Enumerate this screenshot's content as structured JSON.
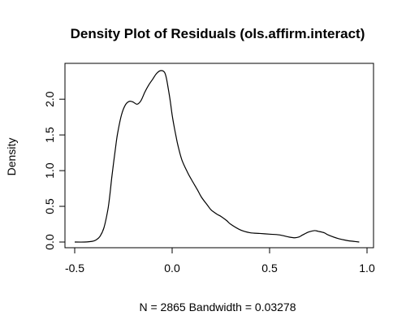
{
  "chart_data": {
    "type": "line",
    "title": "Density Plot of Residuals (ols.affirm.interact)",
    "xlabel": "N = 2865   Bandwidth = 0.03278",
    "ylabel": "Density",
    "xlim": [
      -0.5,
      1.0
    ],
    "ylim": [
      0.0,
      2.4
    ],
    "x_ticks": [
      -0.5,
      0.0,
      0.5,
      1.0
    ],
    "x_tick_labels": [
      "-0.5",
      "0.0",
      "0.5",
      "1.0"
    ],
    "y_ticks": [
      0.0,
      0.5,
      1.0,
      1.5,
      2.0
    ],
    "y_tick_labels": [
      "0.0",
      "0.5",
      "1.0",
      "1.5",
      "2.0"
    ],
    "grid": false,
    "line_color": "#000000",
    "series": [
      {
        "x": [
          -0.5,
          -0.45,
          -0.41,
          -0.39,
          -0.37,
          -0.35,
          -0.33,
          -0.32,
          -0.31,
          -0.3,
          -0.29,
          -0.28,
          -0.26,
          -0.24,
          -0.22,
          -0.2,
          -0.18,
          -0.16,
          -0.14,
          -0.12,
          -0.1,
          -0.08,
          -0.06,
          -0.04,
          -0.03,
          -0.02,
          -0.01,
          0.0,
          0.01,
          0.02,
          0.03,
          0.05,
          0.08,
          0.1,
          0.13,
          0.15,
          0.18,
          0.2,
          0.23,
          0.25,
          0.28,
          0.3,
          0.35,
          0.4,
          0.45,
          0.5,
          0.55,
          0.6,
          0.63,
          0.65,
          0.67,
          0.7,
          0.73,
          0.75,
          0.78,
          0.8,
          0.85,
          0.9,
          0.93,
          0.96
        ],
        "y": [
          0.0,
          0.0,
          0.01,
          0.03,
          0.08,
          0.2,
          0.45,
          0.65,
          0.9,
          1.12,
          1.33,
          1.52,
          1.78,
          1.92,
          1.97,
          1.96,
          1.93,
          1.98,
          2.1,
          2.2,
          2.28,
          2.36,
          2.4,
          2.38,
          2.3,
          2.15,
          1.98,
          1.78,
          1.62,
          1.48,
          1.35,
          1.15,
          0.97,
          0.87,
          0.73,
          0.63,
          0.52,
          0.45,
          0.39,
          0.36,
          0.3,
          0.25,
          0.17,
          0.13,
          0.12,
          0.11,
          0.1,
          0.07,
          0.06,
          0.07,
          0.1,
          0.14,
          0.16,
          0.15,
          0.13,
          0.1,
          0.05,
          0.02,
          0.01,
          0.0
        ]
      }
    ]
  }
}
